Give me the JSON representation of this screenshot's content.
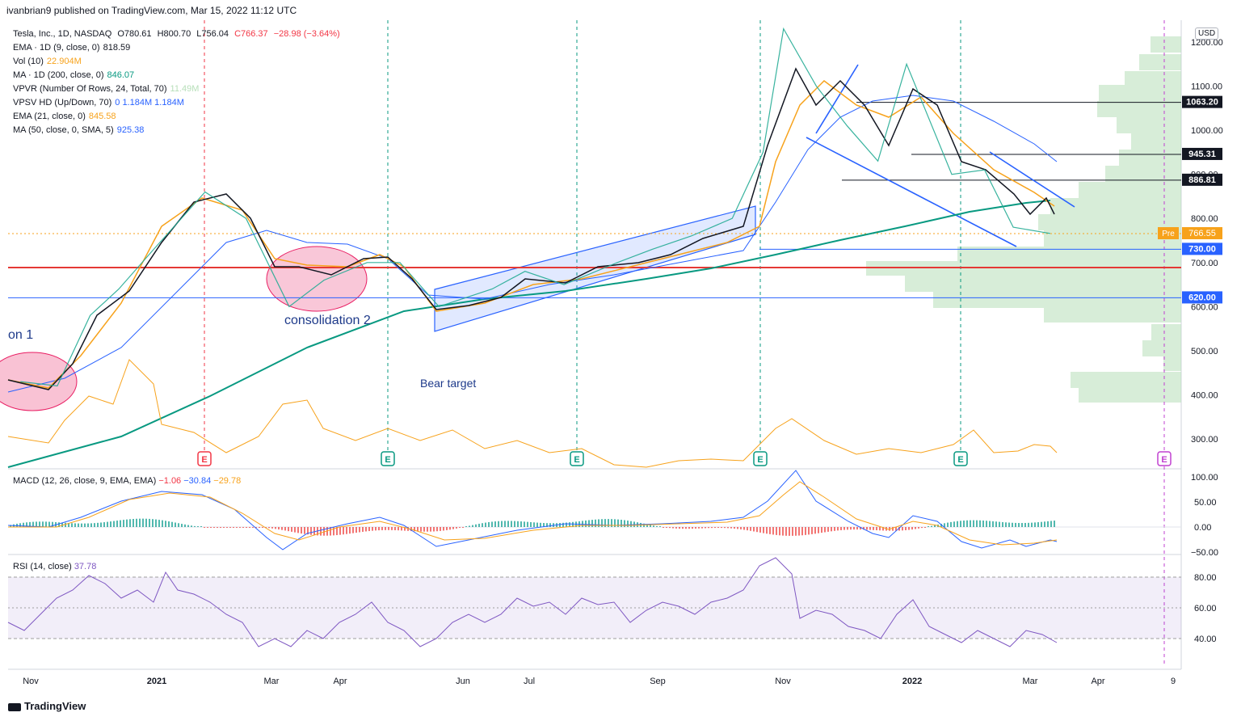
{
  "header": {
    "published": "ivanbrian9 published on TradingView.com, Mar 15, 2022 11:12 UTC"
  },
  "legend": {
    "symbol": "Tesla, Inc., 1D, NASDAQ",
    "ohlc": {
      "o": "O780.61",
      "h": "H800.70",
      "l": "L756.04",
      "c": "C766.37",
      "chg": "−28.98 (−3.64%)"
    },
    "rows": [
      {
        "label": "EMA · 1D (9, close, 0)",
        "value": "818.59",
        "color": "#131722"
      },
      {
        "label": "Vol (10)",
        "value": "22.904M",
        "color": "#f7a21b"
      },
      {
        "label": "MA · 1D (200, close, 0)",
        "value": "846.07",
        "color": "#089981"
      },
      {
        "label": "VPVR (Number Of Rows, 24, Total, 70)",
        "value": "11.49M",
        "color": "#b7dfb9"
      },
      {
        "label": "VPSV HD (Up/Down, 70)",
        "value": "0  1.184M  1.184M",
        "color": "#2962ff"
      },
      {
        "label": "EMA (21, close, 0)",
        "value": "845.58",
        "color": "#f7a21b"
      },
      {
        "label": "MA (50, close, 0, SMA, 5)",
        "value": "925.38",
        "color": "#2962ff"
      }
    ]
  },
  "currency_button": "USD",
  "annotations": {
    "consolidation1": "on 1",
    "consolidation2": "consolidation 2",
    "bear_target": "Bear target"
  },
  "price_axis": {
    "ticks": [
      "1200.00",
      "1100.00",
      "1000.00",
      "900.00",
      "800.00",
      "700.00",
      "600.00",
      "500.00",
      "400.00",
      "300.00"
    ],
    "tick_values": [
      1200,
      1100,
      1000,
      900,
      800,
      700,
      600,
      500,
      400,
      300
    ],
    "levels": [
      {
        "label": "1063.20",
        "value": 1063.2
      },
      {
        "label": "945.31",
        "value": 945.31
      },
      {
        "label": "886.81",
        "value": 886.81
      },
      {
        "label": "730.00",
        "value": 730.0
      },
      {
        "label": "620.00",
        "value": 620.0
      }
    ],
    "pre_label": "Pre",
    "pre_value": "766.55"
  },
  "time_axis": {
    "labels": [
      "Nov",
      "2021",
      "Mar",
      "Apr",
      "Jun",
      "Jul",
      "Sep",
      "Nov",
      "2022",
      "Mar",
      "Apr",
      "9"
    ]
  },
  "earnings_markers": [
    "E",
    "E",
    "E",
    "E",
    "E",
    "E"
  ],
  "macd": {
    "label": "MACD (12, 26, close, 9, EMA, EMA)",
    "values": [
      "−1.06",
      "−30.84",
      "−29.78"
    ],
    "ticks": [
      "100.00",
      "50.00",
      "0.00",
      "−50.00"
    ]
  },
  "rsi": {
    "label": "RSI (14, close)",
    "value": "37.78",
    "ticks": [
      "80.00",
      "60.00",
      "40.00"
    ]
  },
  "chart_data": {
    "type": "line",
    "title": "Tesla, Inc., 1D, NASDAQ",
    "series": [
      {
        "name": "Tesla, Inc., 1D, NASDAQ",
        "x": [
          "2020-10-28",
          "2020-11-15",
          "2020-12-01",
          "2020-12-15",
          "2021-01-01",
          "2021-01-26",
          "2021-02-15",
          "2021-03-08",
          "2021-03-25",
          "2021-04-15",
          "2021-05-01",
          "2021-05-20",
          "2021-06-15",
          "2021-07-01",
          "2021-07-20",
          "2021-08-15",
          "2021-09-01",
          "2021-09-20",
          "2021-10-10",
          "2021-10-25",
          "2021-11-04",
          "2021-11-20",
          "2021-12-05",
          "2021-12-20",
          "2022-01-03",
          "2022-01-25",
          "2022-02-10",
          "2022-02-24",
          "2022-03-14"
        ],
        "y": [
          430,
          420,
          580,
          640,
          730,
          860,
          800,
          600,
          660,
          700,
          700,
          600,
          640,
          680,
          650,
          700,
          730,
          760,
          800,
          950,
          1230,
          1100,
          1010,
          930,
          1150,
          900,
          910,
          780,
          766
        ]
      }
    ],
    "ylim": [
      250,
      1250
    ],
    "levels": [
      1063.2,
      945.31,
      886.81,
      730,
      620
    ],
    "support_line": 685,
    "grid": false
  }
}
